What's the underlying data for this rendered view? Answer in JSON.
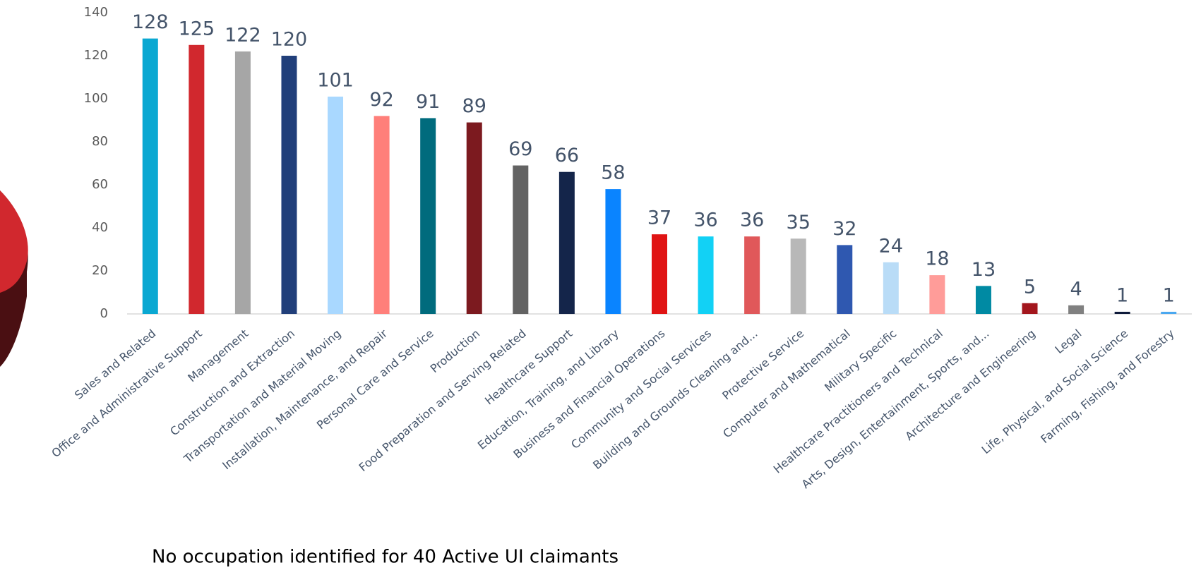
{
  "chart_data": {
    "type": "bar",
    "categories": [
      "Sales and Related",
      "Office and Administrative Support",
      "Management",
      "Construction and Extraction",
      "Transportation and Material Moving",
      "Installation, Maintenance, and Repair",
      "Personal Care and Service",
      "Production",
      "Food Preparation and Serving Related",
      "Healthcare Support",
      "Education, Training, and Library",
      "Business and Financial Operations",
      "Community and Social Services",
      "Building and Grounds Cleaning and...",
      "Protective Service",
      "Computer and Mathematical",
      "Military Specific",
      "Healthcare Practitioners and Technical",
      "Arts, Design, Entertainment, Sports, and...",
      "Architecture and Engineering",
      "Legal",
      "Life, Physical, and Social Science",
      "Farming, Fishing, and Forestry"
    ],
    "values": [
      128,
      125,
      122,
      120,
      101,
      92,
      91,
      89,
      69,
      66,
      58,
      37,
      36,
      36,
      35,
      32,
      24,
      18,
      13,
      5,
      4,
      1,
      1
    ],
    "colors": [
      "#0aa8d2",
      "#d1282e",
      "#a6a6a6",
      "#213f7a",
      "#a9d8ff",
      "#ff7f7a",
      "#006b7d",
      "#7c1a1f",
      "#636363",
      "#14254a",
      "#0a84ff",
      "#e01414",
      "#12d1f5",
      "#e0585a",
      "#b8b8b8",
      "#2f58b0",
      "#b9dcf7",
      "#ff9c99",
      "#008aa3",
      "#a3161d",
      "#808080",
      "#0e1a3a",
      "#4aa8f0"
    ],
    "ylim": [
      0,
      140
    ],
    "yticks": [
      0,
      20,
      40,
      60,
      80,
      100,
      120,
      140
    ],
    "grid": false,
    "note": "No occupation identified for 40 Active UI claimants"
  }
}
